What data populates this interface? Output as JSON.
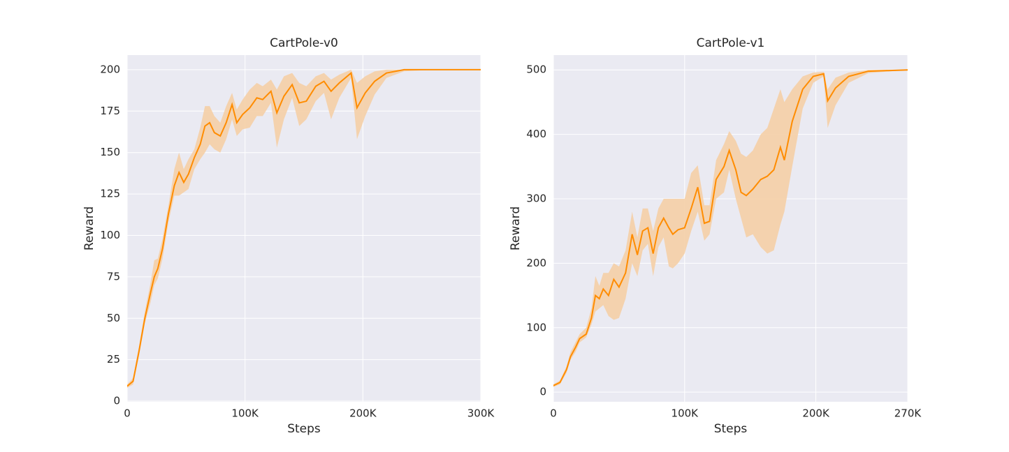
{
  "chart_data": [
    {
      "type": "line",
      "title": "CartPole-v0",
      "xlabel": "Steps",
      "ylabel": "Reward",
      "xlim": [
        0,
        300000
      ],
      "ylim": [
        -0.4,
        208.8
      ],
      "xticks": [
        0,
        {
          "value": 100000,
          "label": "100K"
        },
        {
          "value": 200000,
          "label": "200K"
        },
        {
          "value": 300000,
          "label": "300K"
        }
      ],
      "yticks": [
        0,
        25,
        50,
        75,
        100,
        125,
        150,
        175,
        200
      ],
      "grid": true,
      "background": "#eaeaf2",
      "x": [
        0,
        5000,
        10000,
        15000,
        20000,
        23000,
        26000,
        30000,
        35000,
        40000,
        44000,
        48000,
        52000,
        57000,
        62000,
        66000,
        70000,
        74000,
        79000,
        84000,
        89000,
        93000,
        98000,
        104000,
        110000,
        115000,
        122000,
        127000,
        133000,
        140000,
        146000,
        152000,
        160000,
        167000,
        173000,
        180000,
        190000,
        195000,
        202000,
        210000,
        220000,
        235000,
        260000,
        300000
      ],
      "series": [
        {
          "color": "#ff8c00",
          "band_color": "#f5cfa6",
          "values": [
            9,
            12,
            30,
            50,
            66,
            75,
            80,
            92,
            113,
            130,
            138,
            132,
            137,
            147,
            155,
            166,
            168,
            162,
            160,
            168,
            179,
            168,
            173,
            177,
            183,
            182,
            187,
            174,
            184,
            191,
            180,
            181,
            190,
            193,
            187,
            192,
            198,
            177,
            186,
            193,
            198,
            200,
            200,
            200
          ],
          "lower": [
            8,
            10,
            27,
            47,
            60,
            70,
            74,
            86,
            108,
            124,
            124,
            126,
            128,
            140,
            146,
            150,
            155,
            152,
            150,
            158,
            170,
            160,
            164,
            165,
            172,
            172,
            180,
            153,
            170,
            183,
            166,
            170,
            181,
            186,
            170,
            183,
            195,
            158,
            172,
            185,
            195,
            199,
            200,
            200
          ],
          "upper": [
            10,
            14,
            33,
            54,
            72,
            85,
            86,
            98,
            118,
            140,
            150,
            140,
            146,
            152,
            165,
            178,
            178,
            172,
            168,
            178,
            186,
            176,
            182,
            188,
            192,
            190,
            194,
            188,
            196,
            198,
            192,
            190,
            196,
            198,
            194,
            197,
            200,
            192,
            196,
            199,
            200,
            200,
            200,
            200
          ]
        }
      ]
    },
    {
      "type": "line",
      "title": "CartPole-v1",
      "xlabel": "Steps",
      "ylabel": "Reward",
      "xlim": [
        0,
        270000
      ],
      "ylim": [
        -15,
        523
      ],
      "xticks": [
        0,
        {
          "value": 100000,
          "label": "100K"
        },
        {
          "value": 200000,
          "label": "200K"
        },
        {
          "value": 270000,
          "label": "270K"
        }
      ],
      "yticks": [
        0,
        100,
        200,
        300,
        400,
        500
      ],
      "grid": true,
      "background": "#eaeaf2",
      "x": [
        0,
        5000,
        10000,
        13000,
        17000,
        20000,
        25000,
        29000,
        32000,
        35000,
        38000,
        42000,
        46000,
        50000,
        55000,
        60000,
        64000,
        68000,
        72000,
        76000,
        80000,
        84000,
        88000,
        91000,
        95000,
        100000,
        105000,
        110000,
        115000,
        119000,
        124000,
        130000,
        134000,
        139000,
        143000,
        147000,
        152000,
        158000,
        163000,
        168000,
        173000,
        176000,
        182000,
        190000,
        198000,
        206000,
        209000,
        215000,
        225000,
        240000,
        270000
      ],
      "series": [
        {
          "color": "#ff8c00",
          "band_color": "#f5cfa6",
          "values": [
            10,
            15,
            35,
            55,
            70,
            83,
            90,
            115,
            150,
            145,
            160,
            150,
            175,
            163,
            185,
            245,
            213,
            250,
            255,
            215,
            255,
            270,
            255,
            245,
            252,
            255,
            285,
            318,
            262,
            265,
            330,
            350,
            375,
            345,
            310,
            305,
            315,
            330,
            335,
            345,
            380,
            360,
            420,
            470,
            490,
            494,
            452,
            472,
            490,
            498,
            500
          ],
          "lower": [
            8,
            12,
            30,
            50,
            63,
            77,
            85,
            105,
            125,
            130,
            135,
            118,
            112,
            115,
            145,
            200,
            180,
            220,
            230,
            180,
            225,
            240,
            195,
            192,
            200,
            215,
            250,
            280,
            235,
            245,
            300,
            310,
            345,
            300,
            270,
            240,
            245,
            225,
            215,
            220,
            260,
            280,
            350,
            440,
            480,
            490,
            410,
            445,
            480,
            495,
            500
          ],
          "upper": [
            12,
            18,
            40,
            62,
            78,
            90,
            100,
            130,
            180,
            165,
            185,
            185,
            200,
            195,
            220,
            280,
            240,
            285,
            285,
            250,
            285,
            300,
            300,
            300,
            300,
            300,
            340,
            352,
            290,
            290,
            360,
            385,
            405,
            390,
            370,
            365,
            375,
            400,
            410,
            440,
            470,
            450,
            470,
            490,
            496,
            497,
            470,
            488,
            496,
            500,
            500
          ]
        }
      ]
    }
  ]
}
